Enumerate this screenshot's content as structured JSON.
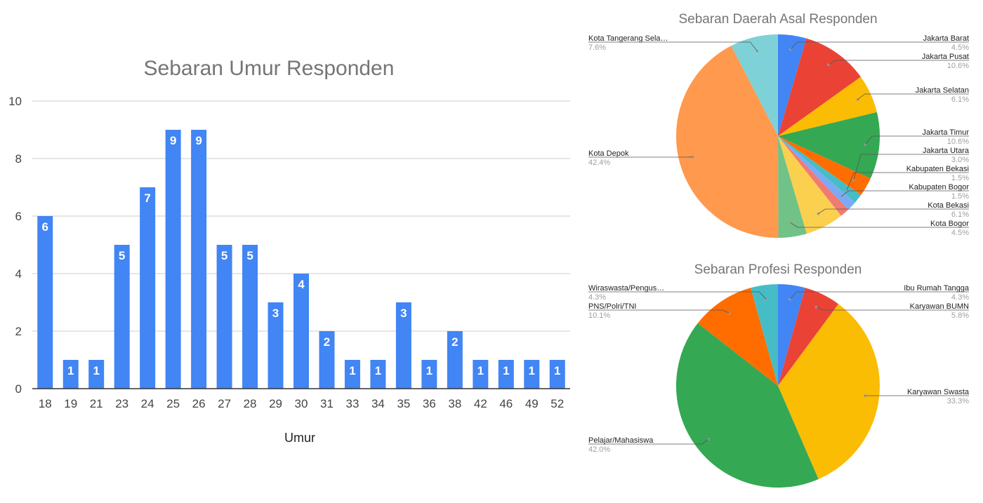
{
  "chart_data": [
    {
      "type": "bar",
      "title": "Sebaran Umur Responden",
      "xlabel": "Umur",
      "ylabel": "",
      "ylim": [
        0,
        10
      ],
      "yticks": [
        0,
        2,
        4,
        6,
        8,
        10
      ],
      "grid": true,
      "color": "#4285f4",
      "categories": [
        "18",
        "19",
        "21",
        "23",
        "24",
        "25",
        "26",
        "27",
        "28",
        "29",
        "30",
        "31",
        "33",
        "34",
        "35",
        "36",
        "38",
        "42",
        "46",
        "49",
        "52"
      ],
      "values": [
        6,
        1,
        1,
        5,
        7,
        9,
        9,
        5,
        5,
        3,
        4,
        2,
        1,
        1,
        3,
        1,
        2,
        1,
        1,
        1,
        1
      ]
    },
    {
      "type": "pie",
      "title": "Sebaran Daerah Asal Responden",
      "slices": [
        {
          "label": "Jakarta Barat",
          "pct": "4.5%",
          "value": 4.5,
          "color": "#4285f4"
        },
        {
          "label": "Jakarta Pusat",
          "pct": "10.6%",
          "value": 10.6,
          "color": "#ea4335"
        },
        {
          "label": "Jakarta Selatan",
          "pct": "6.1%",
          "value": 6.1,
          "color": "#fbbc04"
        },
        {
          "label": "Jakarta Timur",
          "pct": "10.6%",
          "value": 10.6,
          "color": "#34a853"
        },
        {
          "label": "Jakarta Utara",
          "pct": "3.0%",
          "value": 3.0,
          "color": "#ff6d01"
        },
        {
          "label": "Kabupaten Bekasi",
          "pct": "1.5%",
          "value": 1.5,
          "color": "#46bdc6"
        },
        {
          "label": "Kabupaten Bogor",
          "pct": "1.5%",
          "value": 1.5,
          "color": "#7baaf7"
        },
        {
          "label": "Kota Bekasi",
          "pct": "1.5%",
          "value": 1.5,
          "color": "#f07b72"
        },
        {
          "label": "Kota Bekasi",
          "pct": "6.1%",
          "value": 6.1,
          "color": "#fcd04f"
        },
        {
          "label": "Kota Bogor",
          "pct": "4.5%",
          "value": 4.5,
          "color": "#71c287"
        },
        {
          "label": "Kota Depok",
          "pct": "42.4%",
          "value": 42.4,
          "color": "#ff994d"
        },
        {
          "label": "Kota Tangerang Sela…",
          "pct": "7.6%",
          "value": 7.6,
          "color": "#7ed1d7"
        }
      ],
      "labels": [
        {
          "label": "Jakarta Barat",
          "pct": "4.5%",
          "slice": 0,
          "side": "right"
        },
        {
          "label": "Jakarta Pusat",
          "pct": "10.6%",
          "slice": 1,
          "side": "right"
        },
        {
          "label": "Jakarta Selatan",
          "pct": "6.1%",
          "slice": 2,
          "side": "right"
        },
        {
          "label": "Jakarta Timur",
          "pct": "10.6%",
          "slice": 3,
          "side": "right"
        },
        {
          "label": "Jakarta Utara",
          "pct": "3.0%",
          "slice": 4,
          "side": "right"
        },
        {
          "label": "Kabupaten Bekasi",
          "pct": "1.5%",
          "slice": 5,
          "side": "right"
        },
        {
          "label": "Kabupaten Bogor",
          "pct": "1.5%",
          "slice": 6,
          "side": "right"
        },
        {
          "label": "Kota Bekasi",
          "pct": "6.1%",
          "slice": 8,
          "side": "right"
        },
        {
          "label": "Kota Bogor",
          "pct": "4.5%",
          "slice": 9,
          "side": "right"
        },
        {
          "label": "Kota Depok",
          "pct": "42.4%",
          "slice": 10,
          "side": "left"
        },
        {
          "label": "Kota Tangerang Sela…",
          "pct": "7.6%",
          "slice": 11,
          "side": "left"
        }
      ]
    },
    {
      "type": "pie",
      "title": "Sebaran Profesi Responden",
      "slices": [
        {
          "label": "Ibu Rumah Tangga",
          "pct": "4.3%",
          "value": 4.3,
          "color": "#4285f4"
        },
        {
          "label": "Karyawan BUMN",
          "pct": "5.8%",
          "value": 5.8,
          "color": "#ea4335"
        },
        {
          "label": "Karyawan Swasta",
          "pct": "33.3%",
          "value": 33.3,
          "color": "#fbbc04"
        },
        {
          "label": "Pelajar/Mahasiswa",
          "pct": "42.0%",
          "value": 42.0,
          "color": "#34a853"
        },
        {
          "label": "PNS/Polri/TNI",
          "pct": "10.1%",
          "value": 10.1,
          "color": "#ff6d01"
        },
        {
          "label": "Wiraswasta/Pengus…",
          "pct": "4.3%",
          "value": 4.3,
          "color": "#46bdc6"
        }
      ],
      "labels": [
        {
          "label": "Ibu Rumah Tangga",
          "pct": "4.3%",
          "slice": 0,
          "side": "right"
        },
        {
          "label": "Karyawan BUMN",
          "pct": "5.8%",
          "slice": 1,
          "side": "right"
        },
        {
          "label": "Karyawan Swasta",
          "pct": "33.3%",
          "slice": 2,
          "side": "right"
        },
        {
          "label": "Pelajar/Mahasiswa",
          "pct": "42.0%",
          "slice": 3,
          "side": "left"
        },
        {
          "label": "PNS/Polri/TNI",
          "pct": "10.1%",
          "slice": 4,
          "side": "left"
        },
        {
          "label": "Wiraswasta/Pengus…",
          "pct": "4.3%",
          "slice": 5,
          "side": "left"
        }
      ]
    }
  ]
}
